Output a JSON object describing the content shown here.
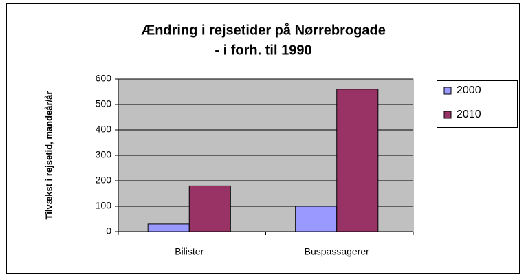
{
  "chart_data": {
    "type": "bar",
    "title": [
      "Ændring i rejsetider på Nørrebrogade",
      "- i forh. til 1990"
    ],
    "y_label": "Tilvækst i rejsetid, mandeår/år",
    "categories": [
      "Bilister",
      "Buspassagerer"
    ],
    "series": [
      {
        "name": "2000",
        "color": "#9999ff",
        "values": [
          30,
          100
        ]
      },
      {
        "name": "2010",
        "color": "#993366",
        "values": [
          180,
          560
        ]
      }
    ],
    "ylim": [
      0,
      600
    ],
    "yticks": [
      0,
      100,
      200,
      300,
      400,
      500,
      600
    ],
    "grid": true,
    "legend": "right"
  }
}
